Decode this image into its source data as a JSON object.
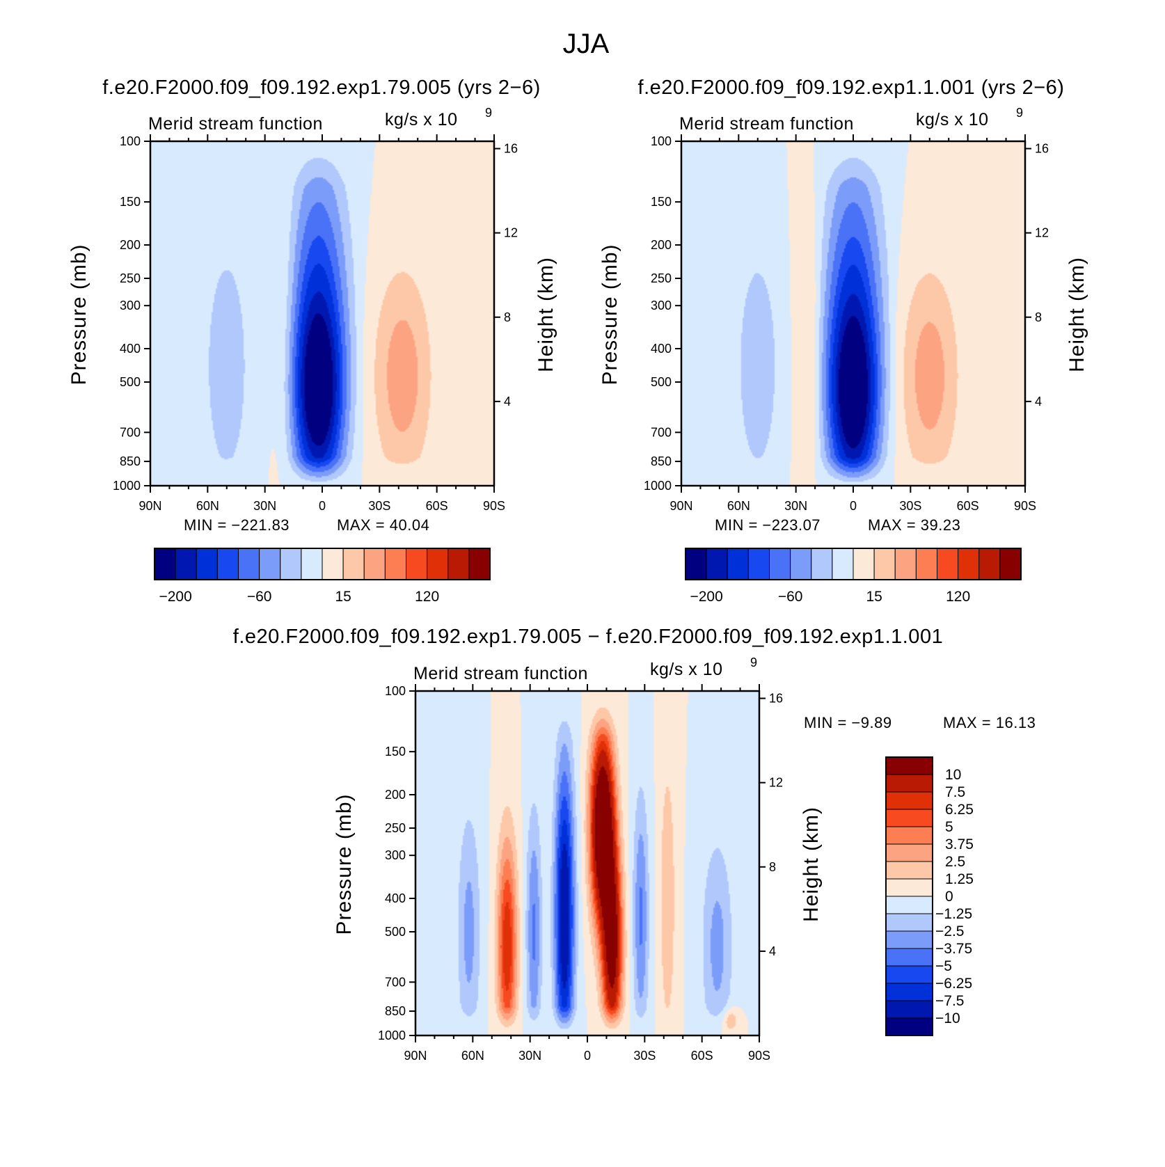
{
  "figure": {
    "season": "JJA"
  },
  "chart_data": [
    {
      "type": "heatmap",
      "title": "f.e20.F2000.f09_f09.192.exp1.79.005 (yrs 2−6)",
      "subtitle_left": "Merid stream function",
      "subtitle_right": "kg/s x 10",
      "subtitle_exp": "9",
      "ylabel": "Pressure (mb)",
      "y2label": "Height (km)",
      "x_ticks": [
        "90N",
        "60N",
        "30N",
        "0",
        "30S",
        "60S",
        "90S"
      ],
      "y_ticks": [
        "100",
        "150",
        "200",
        "250",
        "300",
        "400",
        "500",
        "700",
        "850",
        "1000"
      ],
      "y2_ticks": [
        "16",
        "12",
        "8",
        "4"
      ],
      "ylim": [
        1000,
        100
      ],
      "y_scale": "log",
      "min_label": "MIN = −221.83",
      "max_label": "MAX = 40.04",
      "colorbar_labels": [
        "−200",
        "−60",
        "15",
        "120"
      ],
      "colors": [
        "#000080",
        "#0018b0",
        "#0030d8",
        "#1848f0",
        "#4a72f6",
        "#7c9cfa",
        "#b0c8fc",
        "#d8eafd",
        "#fde9d8",
        "#fdc8a8",
        "#fca482",
        "#fc7e52",
        "#f84a20",
        "#e03008",
        "#b81a04",
        "#880000"
      ],
      "field_range": [
        -221.83,
        40.04
      ],
      "cells": [
        {
          "lat": -50,
          "p": 450,
          "v": -35,
          "latw": 10,
          "pw": 0.7
        },
        {
          "lat": -2,
          "p": 550,
          "v": -221,
          "latw": 11,
          "pw": 0.55
        },
        {
          "lat": -2,
          "p": 320,
          "v": -120,
          "latw": 13,
          "pw": 0.9
        },
        {
          "lat": -18,
          "p": 400,
          "v": 18,
          "latw": 7,
          "pw": 0.9
        },
        {
          "lat": 42,
          "p": 480,
          "v": 40,
          "latw": 15,
          "pw": 0.7
        },
        {
          "lat": 78,
          "p": 950,
          "v": 8,
          "latw": 6,
          "pw": 0.1
        }
      ]
    },
    {
      "type": "heatmap",
      "title": "f.e20.F2000.f09_f09.192.exp1.1.001 (yrs 2−6)",
      "subtitle_left": "Merid stream function",
      "subtitle_right": "kg/s x 10",
      "subtitle_exp": "9",
      "ylabel": "Pressure (mb)",
      "y2label": "Height (km)",
      "x_ticks": [
        "90N",
        "60N",
        "30N",
        "0",
        "30S",
        "60S",
        "90S"
      ],
      "y_ticks": [
        "100",
        "150",
        "200",
        "250",
        "300",
        "400",
        "500",
        "700",
        "850",
        "1000"
      ],
      "y2_ticks": [
        "16",
        "12",
        "8",
        "4"
      ],
      "ylim": [
        1000,
        100
      ],
      "y_scale": "log",
      "min_label": "MIN = −223.07",
      "max_label": "MAX = 39.23",
      "colorbar_labels": [
        "−200",
        "−60",
        "15",
        "120"
      ],
      "colors": [
        "#000080",
        "#0018b0",
        "#0030d8",
        "#1848f0",
        "#4a72f6",
        "#7c9cfa",
        "#b0c8fc",
        "#d8eafd",
        "#fde9d8",
        "#fdc8a8",
        "#fca482",
        "#fc7e52",
        "#f84a20",
        "#e03008",
        "#b81a04",
        "#880000"
      ],
      "field_range": [
        -223.07,
        39.23
      ],
      "cells": [
        {
          "lat": -50,
          "p": 450,
          "v": -33,
          "latw": 10,
          "pw": 0.7
        },
        {
          "lat": 0,
          "p": 560,
          "v": -223,
          "latw": 11,
          "pw": 0.55
        },
        {
          "lat": 0,
          "p": 320,
          "v": -120,
          "latw": 13,
          "pw": 0.9
        },
        {
          "lat": -22,
          "p": 400,
          "v": 18,
          "latw": 7,
          "pw": 0.9
        },
        {
          "lat": 40,
          "p": 480,
          "v": 39,
          "latw": 15,
          "pw": 0.7
        }
      ]
    },
    {
      "type": "heatmap",
      "title": "f.e20.F2000.f09_f09.192.exp1.79.005 − f.e20.F2000.f09_f09.192.exp1.1.001",
      "subtitle_left": "Merid stream function",
      "subtitle_right": "kg/s x 10",
      "subtitle_exp": "9",
      "ylabel": "Pressure (mb)",
      "y2label": "Height (km)",
      "x_ticks": [
        "90N",
        "60N",
        "30N",
        "0",
        "30S",
        "60S",
        "90S"
      ],
      "y_ticks": [
        "100",
        "150",
        "200",
        "250",
        "300",
        "400",
        "500",
        "700",
        "850",
        "1000"
      ],
      "y2_ticks": [
        "16",
        "12",
        "8",
        "4"
      ],
      "ylim": [
        1000,
        100
      ],
      "y_scale": "log",
      "min_label": "MIN = −9.89",
      "max_label": "MAX = 16.13",
      "colorbar_labels": [
        "10",
        "7.5",
        "6.25",
        "5",
        "3.75",
        "2.5",
        "1.25",
        "0",
        "−1.25",
        "−2.5",
        "−3.75",
        "−5",
        "−6.25",
        "−7.5",
        "−10"
      ],
      "colors": [
        "#880000",
        "#b81a04",
        "#e03008",
        "#f84a20",
        "#fc7e52",
        "#fca482",
        "#fdc8a8",
        "#fde9d8",
        "#d8eafd",
        "#b0c8fc",
        "#7c9cfa",
        "#4a72f6",
        "#1848f0",
        "#0030d8",
        "#0018b0",
        "#000080"
      ],
      "field_range": [
        -9.89,
        16.13
      ],
      "cells": [
        {
          "lat": -62,
          "p": 500,
          "v": -3,
          "latw": 6,
          "pw": 0.8
        },
        {
          "lat": -42,
          "p": 550,
          "v": 7.5,
          "latw": 5,
          "pw": 0.7
        },
        {
          "lat": -28,
          "p": 500,
          "v": -4,
          "latw": 4,
          "pw": 0.8
        },
        {
          "lat": -12,
          "p": 450,
          "v": -9.5,
          "latw": 5,
          "pw": 1.0
        },
        {
          "lat": 8,
          "p": 250,
          "v": 16,
          "latw": 6,
          "pw": 0.6
        },
        {
          "lat": 13,
          "p": 550,
          "v": 12,
          "latw": 5,
          "pw": 0.6
        },
        {
          "lat": 28,
          "p": 450,
          "v": -4,
          "latw": 4,
          "pw": 0.8
        },
        {
          "lat": 42,
          "p": 400,
          "v": 2.5,
          "latw": 4,
          "pw": 0.9
        },
        {
          "lat": 68,
          "p": 550,
          "v": -3,
          "latw": 8,
          "pw": 0.7
        },
        {
          "lat": 75,
          "p": 950,
          "v": 6,
          "latw": 4,
          "pw": 0.1
        }
      ]
    }
  ]
}
